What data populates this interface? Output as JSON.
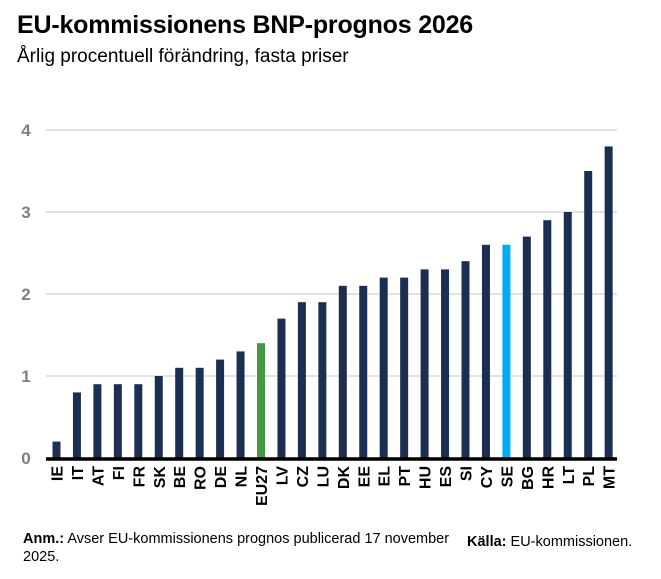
{
  "header": {
    "title": "EU-kommissionens BNP-prognos 2026",
    "subtitle": "Årlig procentuell förändring, fasta priser"
  },
  "footer": {
    "note_label": "Anm.:",
    "note_text": " Avser EU-kommissionens prognos publicerad 17 november 2025.",
    "source_label": "Källa:",
    "source_text": " EU-kommissionen."
  },
  "colors": {
    "default_bar": "#1b2f52",
    "eu27_bar": "#45983f",
    "se_bar": "#00adef",
    "grid": "#d9d9d9",
    "axis": "#000000",
    "tick_label": "#7f7f7f"
  },
  "chart_data": {
    "type": "bar",
    "title": "EU-kommissionens BNP-prognos 2026",
    "subtitle": "Årlig procentuell förändring, fasta priser",
    "xlabel": "",
    "ylabel": "",
    "ylim": [
      0,
      4
    ],
    "yticks": [
      0,
      1,
      2,
      3,
      4
    ],
    "grid": true,
    "legend": "none",
    "categories": [
      "IE",
      "IT",
      "AT",
      "FI",
      "FR",
      "SK",
      "BE",
      "RO",
      "DE",
      "NL",
      "EU27",
      "LV",
      "CZ",
      "LU",
      "DK",
      "EE",
      "EL",
      "PT",
      "HU",
      "ES",
      "SI",
      "CY",
      "SE",
      "BG",
      "HR",
      "LT",
      "PL",
      "MT"
    ],
    "values": [
      0.2,
      0.8,
      0.9,
      0.9,
      0.9,
      1.0,
      1.1,
      1.1,
      1.2,
      1.3,
      1.4,
      1.7,
      1.9,
      1.9,
      2.1,
      2.1,
      2.2,
      2.2,
      2.3,
      2.3,
      2.4,
      2.6,
      2.6,
      2.7,
      2.9,
      3.0,
      3.5,
      3.8
    ],
    "highlights": {
      "EU27": "#45983f",
      "SE": "#00adef"
    }
  }
}
